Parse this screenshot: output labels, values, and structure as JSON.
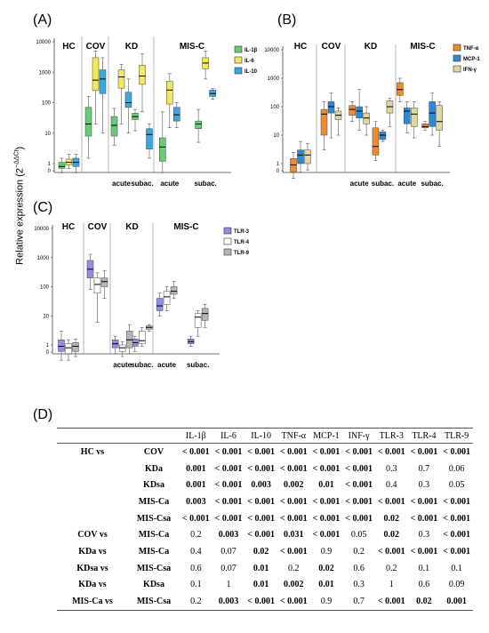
{
  "y_axis_label": "Relative expression (2",
  "y_axis_label_sup": "−ΔΔCt",
  "y_axis_label_end": ")",
  "tick_labels": [
    "10000",
    "1000",
    "100",
    "10",
    "1",
    "0"
  ],
  "sub_labels": [
    "acute",
    "subac.",
    "acute",
    "subac."
  ],
  "colors": {
    "IL-1β": "#66cc77",
    "IL-6": "#f2e85a",
    "IL-10": "#39a8e0",
    "TNF-α": "#f08a30",
    "MCP-1": "#2a8ad8",
    "IFN-γ": "#e0d7a0",
    "TLR-3": "#8f8ee0",
    "TLR-4": "#ffffff",
    "TLR-9": "#b5b5b5"
  },
  "chart_data": [
    {
      "type": "box",
      "panel": "(A)",
      "groups": [
        "HC",
        "COV",
        "KD",
        "MIS-C"
      ],
      "subgroups": [
        "HC",
        "COV",
        "KD acute",
        "KD subac.",
        "MIS-C acute",
        "MIS-C subac."
      ],
      "series": [
        {
          "name": "IL-1β",
          "medians": [
            0.8,
            20,
            18,
            35,
            3.5,
            20
          ],
          "q1": [
            0.7,
            8,
            8,
            28,
            1.2,
            14
          ],
          "q3": [
            1.1,
            70,
            35,
            45,
            7,
            25
          ],
          "min": [
            0.5,
            1.5,
            4,
            12,
            0.5,
            5
          ],
          "max": [
            1.5,
            160,
            65,
            60,
            50,
            60
          ]
        },
        {
          "name": "IL-6",
          "medians": [
            1.1,
            550,
            700,
            750,
            260,
            2000
          ],
          "q1": [
            0.9,
            250,
            300,
            400,
            90,
            1300
          ],
          "q3": [
            1.4,
            3000,
            1200,
            1700,
            500,
            3000
          ],
          "min": [
            0.7,
            20,
            20,
            50,
            15,
            600
          ],
          "max": [
            2,
            5000,
            1800,
            4000,
            900,
            5000
          ]
        },
        {
          "name": "IL-10",
          "medians": [
            1.1,
            600,
            100,
            9,
            40,
            200
          ],
          "q1": [
            0.8,
            200,
            70,
            3,
            25,
            160
          ],
          "q3": [
            1.5,
            1200,
            220,
            14,
            70,
            260
          ],
          "min": [
            0.5,
            10,
            10,
            1.5,
            15,
            130
          ],
          "max": [
            2,
            3000,
            600,
            20,
            100,
            290
          ]
        }
      ]
    },
    {
      "type": "box",
      "panel": "(B)",
      "groups": [
        "HC",
        "COV",
        "KD",
        "MIS-C"
      ],
      "subgroups": [
        "HC",
        "COV",
        "KD acute",
        "KD subac.",
        "MIS-C acute",
        "MIS-C subac."
      ],
      "series": [
        {
          "name": "TNF-α",
          "medians": [
            0.9,
            55,
            80,
            4,
            400,
            20
          ],
          "q1": [
            0.5,
            10,
            50,
            2,
            250,
            18
          ],
          "q3": [
            1.5,
            80,
            110,
            18,
            700,
            25
          ],
          "min": [
            0.3,
            3,
            30,
            1.3,
            150,
            15
          ],
          "max": [
            2.5,
            150,
            150,
            30,
            1000,
            30
          ]
        },
        {
          "name": "MCP-1",
          "medians": [
            2,
            100,
            70,
            10,
            70,
            60
          ],
          "q1": [
            1,
            60,
            40,
            7,
            25,
            20
          ],
          "q3": [
            3,
            150,
            100,
            13,
            90,
            150
          ],
          "min": [
            0.5,
            8,
            15,
            6,
            12,
            10
          ],
          "max": [
            6,
            300,
            400,
            15,
            150,
            300
          ]
        },
        {
          "name": "IFN-γ",
          "medians": [
            2,
            50,
            40,
            100,
            55,
            30
          ],
          "q1": [
            1,
            35,
            25,
            60,
            20,
            15
          ],
          "q3": [
            3,
            70,
            60,
            160,
            90,
            110
          ],
          "min": [
            0.6,
            10,
            10,
            20,
            8,
            4
          ],
          "max": [
            5,
            90,
            100,
            200,
            150,
            150
          ]
        }
      ]
    },
    {
      "type": "box",
      "panel": "(C)",
      "groups": [
        "HC",
        "COV",
        "KD",
        "MIS-C"
      ],
      "subgroups": [
        "HC",
        "COV",
        "KD acute",
        "KD subac.",
        "MIS-C acute",
        "MIS-C subac."
      ],
      "series": [
        {
          "name": "TLR-3",
          "medians": [
            0.9,
            400,
            1.1,
            1.2,
            22,
            1.3
          ],
          "q1": [
            0.6,
            200,
            0.8,
            0.9,
            15,
            1.1
          ],
          "q3": [
            1.5,
            800,
            1.5,
            1.6,
            40,
            1.6
          ],
          "min": [
            0.3,
            80,
            0.5,
            0.6,
            10,
            0.9
          ],
          "max": [
            3,
            1300,
            2,
            2,
            60,
            2
          ]
        },
        {
          "name": "TLR-4",
          "medians": [
            0.8,
            120,
            0.8,
            1.4,
            45,
            9
          ],
          "q1": [
            0.5,
            60,
            0.6,
            1.1,
            25,
            4
          ],
          "q3": [
            1.1,
            200,
            1,
            3,
            70,
            12
          ],
          "min": [
            0.3,
            6,
            0.4,
            0.9,
            15,
            2
          ],
          "max": [
            1.5,
            300,
            1.3,
            4,
            100,
            15
          ]
        },
        {
          "name": "TLR-9",
          "medians": [
            0.9,
            150,
            1.5,
            4,
            70,
            12
          ],
          "q1": [
            0.6,
            100,
            0.8,
            3.5,
            55,
            7
          ],
          "q3": [
            1.2,
            200,
            3,
            4.5,
            100,
            18
          ],
          "min": [
            0.4,
            40,
            0.5,
            3,
            40,
            4
          ],
          "max": [
            1.6,
            350,
            5,
            5,
            150,
            25
          ]
        }
      ]
    }
  ],
  "table": {
    "panel_label": "(D)",
    "headers": [
      "",
      "",
      "IL-1β",
      "IL-6",
      "IL-10",
      "TNF-α",
      "MCP-1",
      "INF-γ",
      "TLR-3",
      "TLR-4",
      "TLR-9"
    ],
    "rows": [
      {
        "c1": "HC vs",
        "c2": "COV",
        "v": [
          "< 0.001",
          "< 0.001",
          "< 0.001",
          "< 0.001",
          "< 0.001",
          "< 0.001",
          "< 0.001",
          "< 0.001",
          "< 0.001"
        ],
        "b": [
          1,
          1,
          1,
          1,
          1,
          1,
          1,
          1,
          1
        ]
      },
      {
        "c1": "",
        "c2": "KDa",
        "v": [
          "0.001",
          "< 0.001",
          "< 0.001",
          "< 0.001",
          "< 0.001",
          "< 0.001",
          "0.3",
          "0.7",
          "0.06"
        ],
        "b": [
          1,
          1,
          1,
          1,
          1,
          1,
          0,
          0,
          0
        ]
      },
      {
        "c1": "",
        "c2": "KDsa",
        "v": [
          "0.001",
          "< 0.001",
          "0.003",
          "0.002",
          "0.01",
          "< 0.001",
          "0.4",
          "0.3",
          "0.05"
        ],
        "b": [
          1,
          1,
          1,
          1,
          1,
          1,
          0,
          0,
          0
        ]
      },
      {
        "c1": "",
        "c2": "MIS-Ca",
        "v": [
          "0.003",
          "< 0.001",
          "< 0.001",
          "< 0.001",
          "< 0.001",
          "< 0.001",
          "< 0.001",
          "< 0.001",
          "< 0.001"
        ],
        "b": [
          1,
          1,
          1,
          1,
          1,
          1,
          1,
          1,
          1
        ]
      },
      {
        "c1": "",
        "c2": "MIS-Csa",
        "v": [
          "< 0.001",
          "< 0.001",
          "< 0.001",
          "< 0.001",
          "< 0.001",
          "< 0.001",
          "0.02",
          "< 0.001",
          "< 0.001"
        ],
        "b": [
          1,
          1,
          1,
          1,
          1,
          1,
          1,
          1,
          1
        ]
      },
      {
        "c1": "COV vs",
        "c2": "MIS-Ca",
        "v": [
          "0.2",
          "0.003",
          "< 0.001",
          "0.031",
          "< 0.001",
          "0.05",
          "0.02",
          "0.3",
          "< 0.001"
        ],
        "b": [
          0,
          1,
          1,
          1,
          1,
          0,
          1,
          0,
          1
        ]
      },
      {
        "c1": "KDa vs",
        "c2": "MIS-Ca",
        "v": [
          "0.4",
          "0.07",
          "0.02",
          "< 0.001",
          "0.9",
          "0.2",
          "< 0.001",
          "< 0.001",
          "< 0.001"
        ],
        "b": [
          0,
          0,
          1,
          1,
          0,
          0,
          1,
          1,
          1
        ]
      },
      {
        "c1": "KDsa vs",
        "c2": "MIS-Csa",
        "v": [
          "0.6",
          "0.07",
          "0.01",
          "0.2",
          "0.02",
          "0.6",
          "0.2",
          "0.1",
          "0.1"
        ],
        "b": [
          0,
          0,
          1,
          0,
          1,
          0,
          0,
          0,
          0
        ]
      },
      {
        "c1": "KDa vs",
        "c2": "KDsa",
        "v": [
          "0.1",
          "1",
          "0.01",
          "0.002",
          "0.01",
          "0.3",
          "1",
          "0.6",
          "0.09"
        ],
        "b": [
          0,
          0,
          1,
          1,
          1,
          0,
          0,
          0,
          0
        ]
      },
      {
        "c1": "MIS-Ca vs",
        "c2": "MIS-Csa",
        "v": [
          "0.2",
          "0.003",
          "< 0.001",
          "< 0.001",
          "0.9",
          "0.7",
          "< 0.001",
          "0.02",
          "0.001"
        ],
        "b": [
          0,
          1,
          1,
          1,
          0,
          0,
          1,
          1,
          1
        ]
      }
    ]
  }
}
